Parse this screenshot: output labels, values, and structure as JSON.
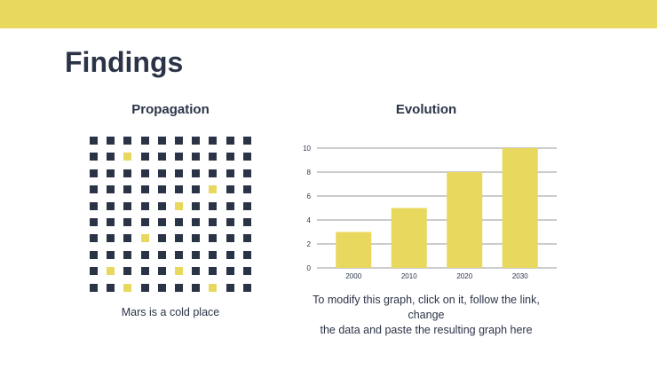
{
  "title": "Findings",
  "left": {
    "subtitle": "Propagation",
    "caption": "Mars is a cold place",
    "highlight_cells": [
      [
        1,
        2
      ],
      [
        3,
        7
      ],
      [
        4,
        5
      ],
      [
        6,
        3
      ],
      [
        8,
        1
      ],
      [
        8,
        5
      ],
      [
        9,
        2
      ],
      [
        9,
        7
      ]
    ],
    "colors": {
      "square": "#2b3447",
      "highlight": "#e8d85e"
    }
  },
  "right": {
    "subtitle": "Evolution",
    "caption_line1": "To modify this graph, click on it, follow the link, change",
    "caption_line2": "the data and paste the resulting graph here"
  },
  "chart_data": {
    "type": "bar",
    "categories": [
      "2000",
      "2010",
      "2020",
      "2030"
    ],
    "values": [
      3,
      5,
      8,
      10
    ],
    "ylim": [
      0,
      10
    ],
    "yticks": [
      0,
      2,
      4,
      6,
      8,
      10
    ],
    "grid": true,
    "title": "",
    "xlabel": "",
    "ylabel": "",
    "bar_color": "#e8d85e"
  }
}
